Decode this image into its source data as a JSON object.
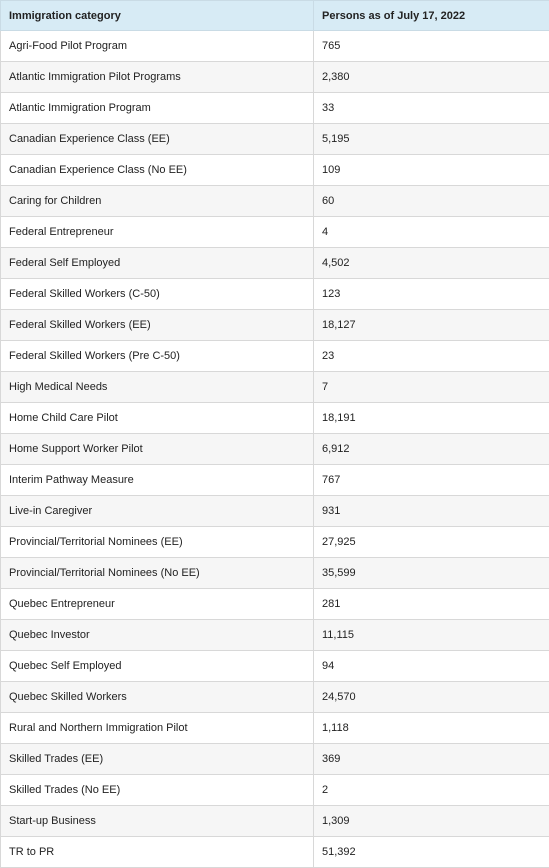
{
  "table": {
    "headers": [
      "Immigration category",
      "Persons as of July 17, 2022"
    ],
    "rows": [
      [
        "Agri-Food Pilot Program",
        "765"
      ],
      [
        "Atlantic Immigration Pilot Programs",
        "2,380"
      ],
      [
        "Atlantic Immigration Program",
        "33"
      ],
      [
        "Canadian Experience Class (EE)",
        "5,195"
      ],
      [
        "Canadian Experience Class (No EE)",
        "109"
      ],
      [
        "Caring for Children",
        "60"
      ],
      [
        "Federal Entrepreneur",
        "4"
      ],
      [
        "Federal Self Employed",
        "4,502"
      ],
      [
        "Federal Skilled Workers (C-50)",
        "123"
      ],
      [
        "Federal Skilled Workers (EE)",
        "18,127"
      ],
      [
        "Federal Skilled Workers (Pre C-50)",
        "23"
      ],
      [
        "High Medical Needs",
        "7"
      ],
      [
        "Home Child Care Pilot",
        "18,191"
      ],
      [
        "Home Support Worker Pilot",
        "6,912"
      ],
      [
        "Interim Pathway Measure",
        "767"
      ],
      [
        "Live-in Caregiver",
        "931"
      ],
      [
        "Provincial/Territorial Nominees (EE)",
        "27,925"
      ],
      [
        "Provincial/Territorial Nominees (No EE)",
        "35,599"
      ],
      [
        "Quebec Entrepreneur",
        "281"
      ],
      [
        "Quebec Investor",
        "11,115"
      ],
      [
        "Quebec Self Employed",
        "94"
      ],
      [
        "Quebec Skilled Workers",
        "24,570"
      ],
      [
        "Rural and Northern Immigration Pilot",
        "1,118"
      ],
      [
        "Skilled Trades (EE)",
        "369"
      ],
      [
        "Skilled Trades (No EE)",
        "2"
      ],
      [
        "Start-up Business",
        "1,309"
      ],
      [
        "TR to PR",
        "51,392"
      ]
    ]
  }
}
